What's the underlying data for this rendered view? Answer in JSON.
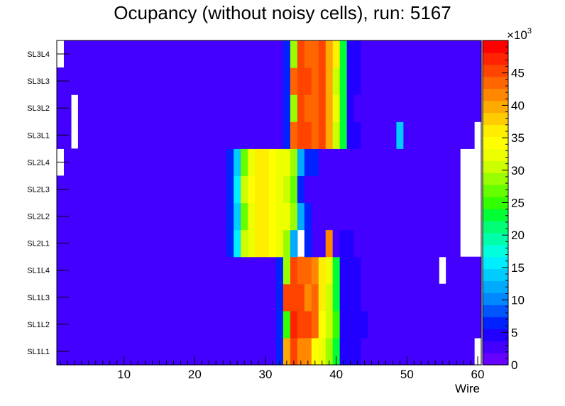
{
  "chart_data": {
    "type": "heatmap",
    "title": "Ocupancy (without noisy cells), run: 5167",
    "xlabel": "Wire",
    "ylabel": "",
    "x_range": [
      0.5,
      60.5
    ],
    "x_ticks": [
      10,
      20,
      30,
      40,
      50,
      60
    ],
    "categories": [
      "SL1L1",
      "SL1L2",
      "SL1L3",
      "SL1L4",
      "SL2L1",
      "SL2L2",
      "SL2L3",
      "SL2L4",
      "SL3L1",
      "SL3L2",
      "SL3L3",
      "SL3L4"
    ],
    "z_range": [
      0,
      50000
    ],
    "z_ticks": [
      0,
      5,
      10,
      15,
      20,
      25,
      30,
      35,
      40,
      45
    ],
    "z_multiplier": "×10",
    "z_exponent": "3",
    "default_value": 3000,
    "rows": [
      {
        "layer": "SL1L1",
        "empty": [
          60
        ],
        "segments": [
          [
            28,
            3500
          ],
          [
            29,
            3500
          ],
          [
            30,
            3500
          ],
          [
            31,
            3500
          ],
          [
            32,
            6000
          ],
          [
            33,
            39000
          ],
          [
            34,
            46000
          ],
          [
            35,
            42000
          ],
          [
            36,
            42000
          ],
          [
            37,
            35000
          ],
          [
            38,
            33000
          ],
          [
            39,
            28000
          ],
          [
            40,
            24000
          ],
          [
            41,
            5000
          ],
          [
            42,
            5000
          ],
          [
            43,
            5000
          ]
        ]
      },
      {
        "layer": "SL1L2",
        "empty": [],
        "segments": [
          [
            29,
            3500
          ],
          [
            30,
            3500
          ],
          [
            31,
            3500
          ],
          [
            32,
            6000
          ],
          [
            33,
            25000
          ],
          [
            34,
            48000
          ],
          [
            35,
            45000
          ],
          [
            36,
            45000
          ],
          [
            37,
            43000
          ],
          [
            38,
            35000
          ],
          [
            39,
            31000
          ],
          [
            40,
            25000
          ],
          [
            41,
            5000
          ],
          [
            42,
            5000
          ],
          [
            43,
            5000
          ],
          [
            44,
            5000
          ]
        ]
      },
      {
        "layer": "SL1L3",
        "empty": [],
        "segments": [
          [
            28,
            3500
          ],
          [
            29,
            3500
          ],
          [
            30,
            3500
          ],
          [
            31,
            3500
          ],
          [
            32,
            6000
          ],
          [
            33,
            46000
          ],
          [
            34,
            46000
          ],
          [
            35,
            46000
          ],
          [
            36,
            41000
          ],
          [
            37,
            43000
          ],
          [
            38,
            36000
          ],
          [
            39,
            30000
          ],
          [
            40,
            24000
          ],
          [
            41,
            5000
          ],
          [
            42,
            5000
          ],
          [
            43,
            5000
          ]
        ]
      },
      {
        "layer": "SL1L4",
        "empty": [
          55
        ],
        "segments": [
          [
            29,
            3500
          ],
          [
            30,
            3500
          ],
          [
            31,
            3500
          ],
          [
            32,
            6000
          ],
          [
            33,
            28000
          ],
          [
            34,
            46000
          ],
          [
            35,
            44000
          ],
          [
            36,
            44000
          ],
          [
            37,
            41000
          ],
          [
            38,
            36000
          ],
          [
            39,
            32000
          ],
          [
            40,
            24000
          ],
          [
            41,
            5000
          ],
          [
            42,
            5000
          ],
          [
            43,
            5000
          ]
        ]
      },
      {
        "layer": "SL2L1",
        "empty": [
          35,
          58,
          59,
          60
        ],
        "segments": [
          [
            23,
            3500
          ],
          [
            24,
            3500
          ],
          [
            25,
            6000
          ],
          [
            26,
            16000
          ],
          [
            27,
            30000
          ],
          [
            28,
            33000
          ],
          [
            29,
            37000
          ],
          [
            30,
            37000
          ],
          [
            31,
            35000
          ],
          [
            32,
            33000
          ],
          [
            33,
            28000
          ],
          [
            34,
            12000
          ],
          [
            36,
            6000
          ],
          [
            39,
            42000
          ],
          [
            41,
            5000
          ],
          [
            42,
            5000
          ]
        ]
      },
      {
        "layer": "SL2L2",
        "empty": [
          58,
          59,
          60
        ],
        "segments": [
          [
            24,
            3500
          ],
          [
            25,
            6000
          ],
          [
            26,
            14000
          ],
          [
            27,
            26000
          ],
          [
            28,
            33000
          ],
          [
            29,
            37000
          ],
          [
            30,
            37000
          ],
          [
            31,
            35000
          ],
          [
            32,
            33000
          ],
          [
            33,
            33000
          ],
          [
            34,
            29000
          ],
          [
            35,
            12000
          ],
          [
            36,
            6000
          ]
        ]
      },
      {
        "layer": "SL2L3",
        "empty": [
          58,
          59,
          60
        ],
        "segments": [
          [
            23,
            3500
          ],
          [
            24,
            3500
          ],
          [
            25,
            6000
          ],
          [
            26,
            16000
          ],
          [
            27,
            30000
          ],
          [
            28,
            34000
          ],
          [
            29,
            37000
          ],
          [
            30,
            37000
          ],
          [
            31,
            35000
          ],
          [
            32,
            33000
          ],
          [
            33,
            30000
          ],
          [
            34,
            26000
          ],
          [
            35,
            6000
          ]
        ]
      },
      {
        "layer": "SL2L4",
        "empty": [
          1,
          58,
          59,
          60
        ],
        "segments": [
          [
            24,
            3500
          ],
          [
            25,
            6000
          ],
          [
            26,
            14000
          ],
          [
            27,
            27000
          ],
          [
            28,
            33000
          ],
          [
            29,
            37000
          ],
          [
            30,
            37000
          ],
          [
            31,
            35000
          ],
          [
            32,
            33000
          ],
          [
            33,
            33000
          ],
          [
            34,
            29000
          ],
          [
            35,
            12000
          ],
          [
            36,
            6000
          ],
          [
            37,
            6000
          ]
        ]
      },
      {
        "layer": "SL3L1",
        "empty": [
          3,
          60
        ],
        "segments": [
          [
            30,
            3500
          ],
          [
            31,
            3500
          ],
          [
            32,
            3500
          ],
          [
            33,
            6000
          ],
          [
            34,
            43000
          ],
          [
            35,
            46000
          ],
          [
            36,
            46000
          ],
          [
            37,
            44000
          ],
          [
            38,
            46000
          ],
          [
            39,
            40000
          ],
          [
            40,
            30000
          ],
          [
            41,
            24000
          ],
          [
            42,
            5000
          ],
          [
            43,
            5000
          ],
          [
            49,
            13000
          ]
        ]
      },
      {
        "layer": "SL3L2",
        "empty": [
          3
        ],
        "segments": [
          [
            31,
            3500
          ],
          [
            32,
            3500
          ],
          [
            33,
            6000
          ],
          [
            34,
            28000
          ],
          [
            35,
            46000
          ],
          [
            36,
            44000
          ],
          [
            37,
            44000
          ],
          [
            38,
            46000
          ],
          [
            39,
            40000
          ],
          [
            40,
            33000
          ],
          [
            41,
            24000
          ],
          [
            42,
            5000
          ]
        ]
      },
      {
        "layer": "SL3L3",
        "empty": [],
        "segments": [
          [
            30,
            3500
          ],
          [
            31,
            3500
          ],
          [
            32,
            3500
          ],
          [
            33,
            6000
          ],
          [
            34,
            44000
          ],
          [
            35,
            46000
          ],
          [
            36,
            46000
          ],
          [
            37,
            44000
          ],
          [
            38,
            46000
          ],
          [
            39,
            40000
          ],
          [
            40,
            30000
          ],
          [
            41,
            24000
          ],
          [
            42,
            5000
          ],
          [
            43,
            5000
          ]
        ]
      },
      {
        "layer": "SL3L4",
        "empty": [
          1
        ],
        "segments": [
          [
            31,
            3500
          ],
          [
            32,
            3500
          ],
          [
            33,
            6000
          ],
          [
            34,
            28000
          ],
          [
            35,
            46000
          ],
          [
            36,
            44000
          ],
          [
            37,
            44000
          ],
          [
            38,
            46000
          ],
          [
            39,
            40000
          ],
          [
            40,
            36000
          ],
          [
            41,
            24000
          ],
          [
            42,
            5000
          ],
          [
            43,
            5000
          ]
        ]
      }
    ]
  }
}
